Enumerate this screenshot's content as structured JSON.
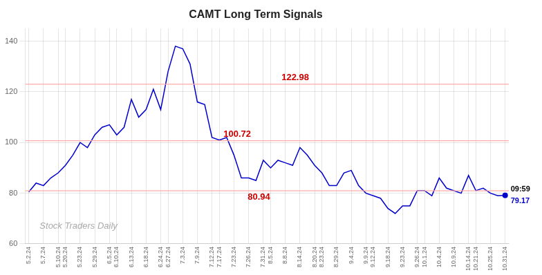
{
  "chart_data": {
    "type": "line",
    "title": "CAMT Long Term Signals",
    "categories": [
      "5.2.24",
      null,
      "5.7.24",
      null,
      "5.10.24",
      "5.20.24",
      null,
      "5.23.24",
      null,
      "5.29.24",
      null,
      "6.5.24",
      "6.10.24",
      null,
      "6.13.24",
      null,
      "6.18.24",
      null,
      "6.24.24",
      "6.27.24",
      null,
      "7.3.24",
      null,
      "7.9.24",
      null,
      "7.12.24",
      "7.17.24",
      null,
      "7.23.24",
      null,
      "7.26.24",
      null,
      "7.31.24",
      "8.5.24",
      null,
      "8.8.24",
      null,
      "8.14.24",
      null,
      "8.20.24",
      "8.23.24",
      null,
      "8.29.24",
      null,
      "9.4.24",
      null,
      "9.9.24",
      "9.12.24",
      null,
      "9.18.24",
      null,
      "9.23.24",
      null,
      "9.26.24",
      "10.1.24",
      null,
      "10.4.24",
      null,
      "10.9.24",
      null,
      "10.14.24",
      "10.21.24",
      null,
      "10.25.24",
      null,
      "10.31.24"
    ],
    "values": [
      80.5,
      84,
      83,
      86,
      88,
      91,
      95,
      100,
      98,
      103,
      106,
      107,
      103,
      106,
      117,
      110,
      113,
      121,
      113,
      128,
      138,
      137,
      131,
      116,
      115,
      102,
      101,
      102,
      95,
      86,
      86,
      85,
      93,
      90,
      93,
      92,
      91,
      98,
      95,
      91,
      88,
      83,
      83,
      88,
      89,
      83,
      80,
      79,
      78,
      74,
      72,
      75,
      75,
      81,
      81,
      79,
      86,
      82,
      81,
      80,
      87,
      81,
      82,
      80,
      79,
      79.17
    ],
    "color": "#0000cc",
    "ylim": [
      60,
      145
    ],
    "yticks": [
      60,
      80,
      100,
      120,
      140
    ],
    "grid": true,
    "reference_lines": {
      "values": [
        80.94,
        100.72,
        122.98
      ],
      "color": "#ffaaaa"
    },
    "annotations": [
      {
        "text": "122.98",
        "y": 122.98,
        "position": "above",
        "color": "#cc0000"
      },
      {
        "text": "100.72",
        "y": 100.72,
        "position": "above",
        "color": "#cc0000"
      },
      {
        "text": "80.94",
        "y": 80.94,
        "position": "below",
        "color": "#cc0000"
      },
      {
        "text": "09:59",
        "x": 65,
        "y": 79.17,
        "position": "above",
        "color": "#000000"
      },
      {
        "text": "79.17",
        "x": 65,
        "y": 79.17,
        "position": "below",
        "color": "#0000cc",
        "marker": "circle"
      }
    ],
    "watermark": {
      "text": "Stock Traders Daily",
      "color": "#aaaaaa"
    }
  }
}
